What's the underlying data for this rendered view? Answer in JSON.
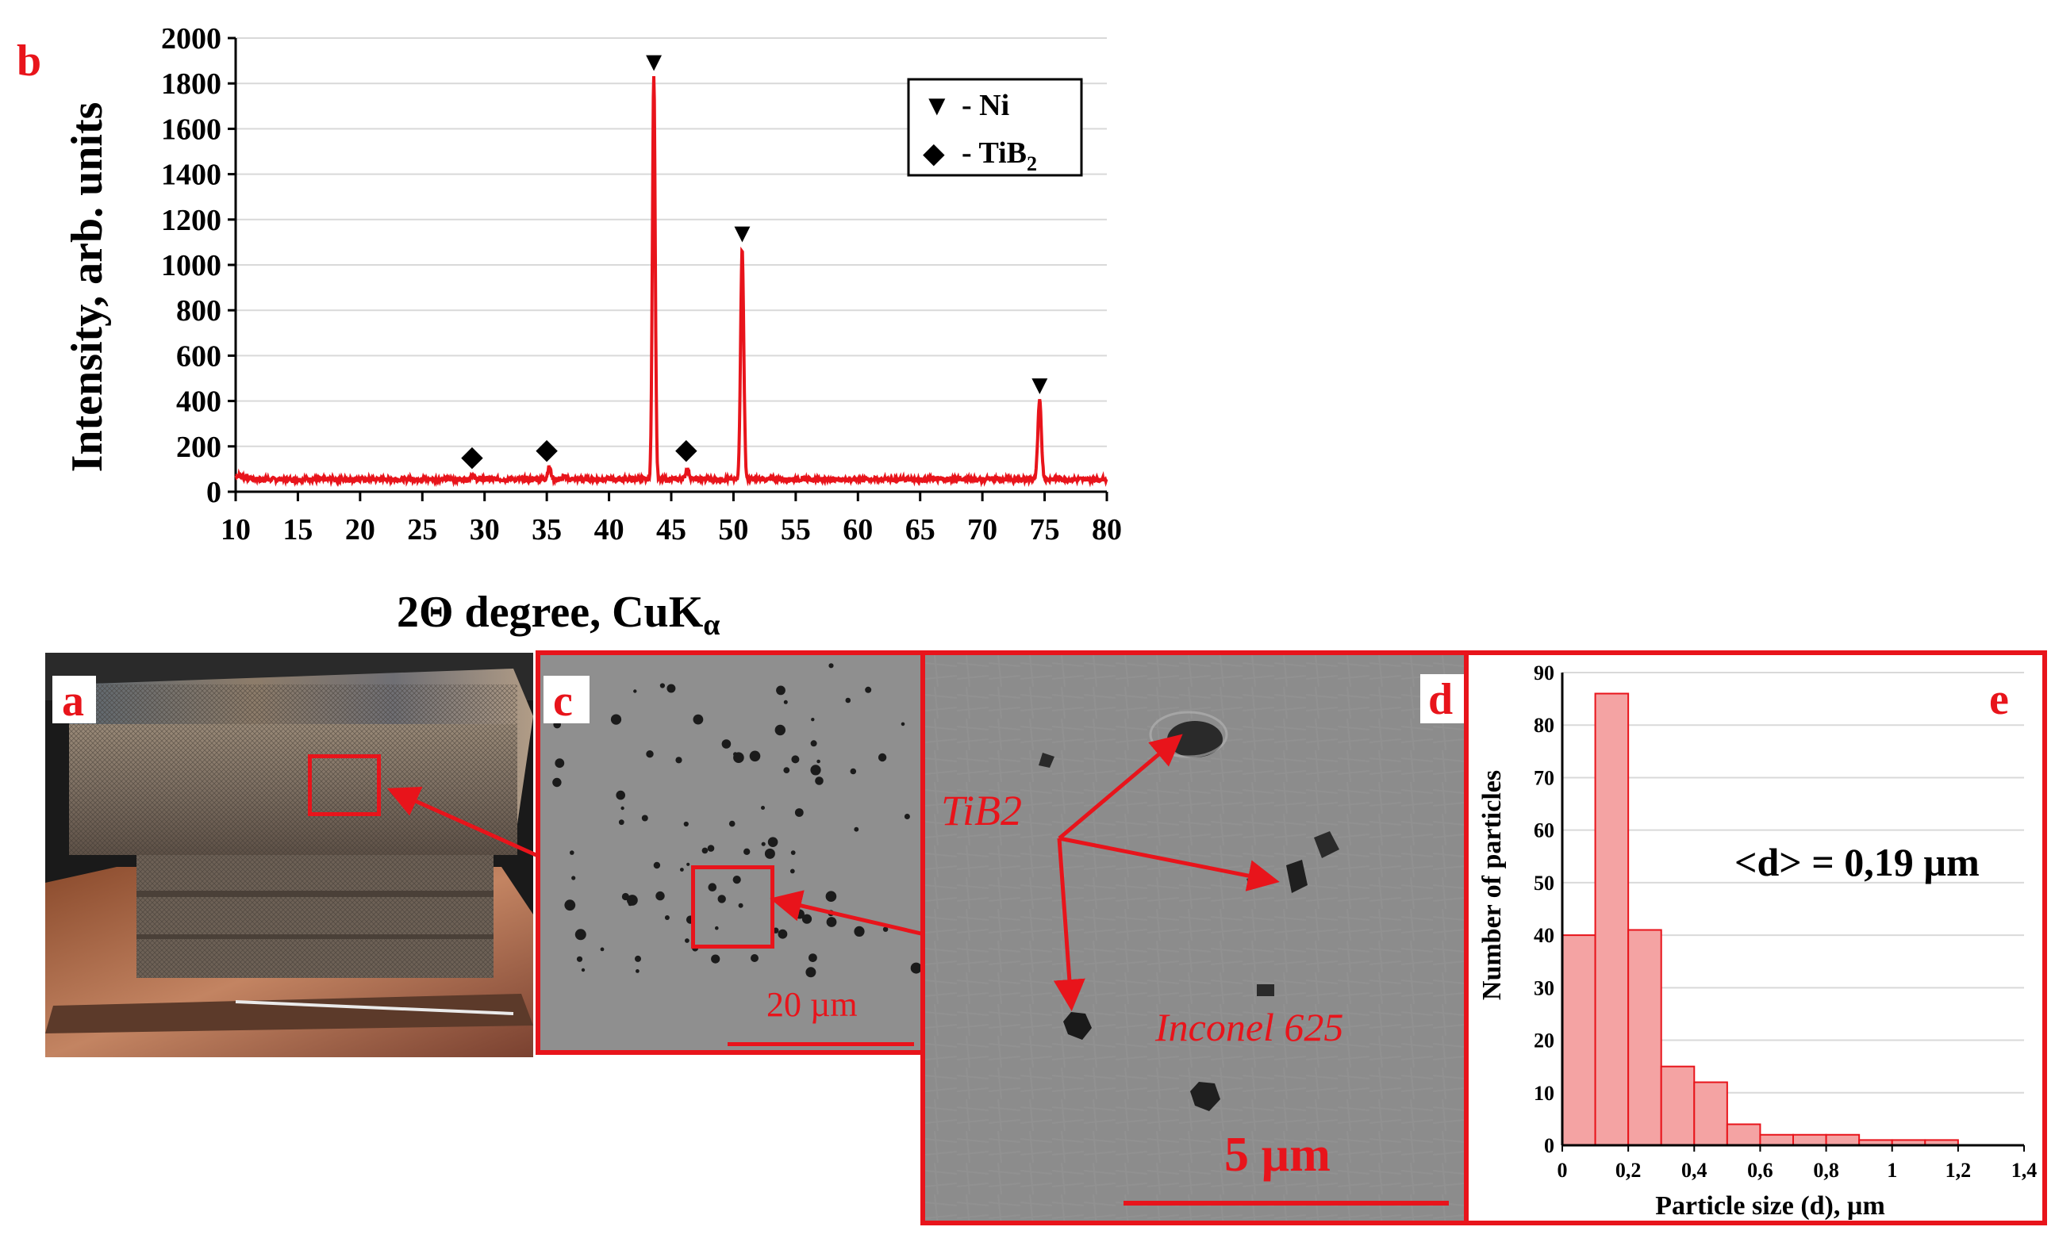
{
  "panel_labels": {
    "a": "a",
    "b": "b",
    "c": "c",
    "d": "d",
    "e": "e"
  },
  "colors": {
    "accent_red": "#e8141b",
    "hist_fill": "#f4a3a3",
    "sem_gray": "#8e8e8e"
  },
  "chart_data": [
    {
      "type": "line",
      "panel": "b",
      "xlabel_prefix": "2Θ degree, CuK",
      "xlabel_sub": "α",
      "ylabel": "Intensity, arb. units",
      "xlim": [
        10,
        80
      ],
      "ylim": [
        0,
        2000
      ],
      "xticks": [
        "10",
        "15",
        "20",
        "25",
        "30",
        "35",
        "40",
        "45",
        "50",
        "55",
        "60",
        "65",
        "70",
        "75",
        "80"
      ],
      "yticks": [
        "0",
        "200",
        "400",
        "600",
        "800",
        "1000",
        "1200",
        "1400",
        "1600",
        "1800",
        "2000"
      ],
      "grid": "horizontal",
      "legend_placement": "top-right",
      "legend": [
        {
          "marker": "▼",
          "label": "- Ni",
          "sub": ""
        },
        {
          "marker": "◆",
          "label": "- TiB",
          "sub": "2"
        }
      ],
      "series": [
        {
          "color": "#e8141b",
          "baseline": 55,
          "peaks": [
            {
              "x": 29.0,
              "y": 80,
              "w": 0.15
            },
            {
              "x": 35.2,
              "y": 110,
              "w": 0.18
            },
            {
              "x": 36.5,
              "y": 70,
              "w": 0.15
            },
            {
              "x": 43.6,
              "y": 1840,
              "w": 0.16
            },
            {
              "x": 46.3,
              "y": 100,
              "w": 0.2
            },
            {
              "x": 50.7,
              "y": 1070,
              "w": 0.18
            },
            {
              "x": 74.6,
              "y": 400,
              "w": 0.2
            }
          ]
        }
      ],
      "markers": [
        {
          "symbol": "▼",
          "phase": "Ni",
          "x": 43.6,
          "y": 1905
        },
        {
          "symbol": "▼",
          "phase": "Ni",
          "x": 50.7,
          "y": 1150
        },
        {
          "symbol": "▼",
          "phase": "Ni",
          "x": 74.6,
          "y": 480
        },
        {
          "symbol": "◆",
          "phase": "TiB2",
          "x": 29.0,
          "y": 165
        },
        {
          "symbol": "◆",
          "phase": "TiB2",
          "x": 35.0,
          "y": 195
        },
        {
          "symbol": "◆",
          "phase": "TiB2",
          "x": 46.2,
          "y": 195
        }
      ]
    },
    {
      "type": "bar",
      "panel": "e",
      "xlabel": "Particle size (d), µm",
      "ylabel": "Number of particles",
      "annotation": "<d> = 0,19 µm",
      "xlim": [
        0,
        1.4
      ],
      "ylim": [
        0,
        90
      ],
      "xticks": [
        "0",
        "0,2",
        "0,4",
        "0,6",
        "0,8",
        "1",
        "1,2",
        "1,4"
      ],
      "yticks": [
        "0",
        "10",
        "20",
        "30",
        "40",
        "50",
        "60",
        "70",
        "80",
        "90"
      ],
      "bins": [
        {
          "x0": 0.0,
          "x1": 0.1,
          "value": 40
        },
        {
          "x0": 0.1,
          "x1": 0.2,
          "value": 86
        },
        {
          "x0": 0.2,
          "x1": 0.3,
          "value": 41
        },
        {
          "x0": 0.3,
          "x1": 0.4,
          "value": 15
        },
        {
          "x0": 0.4,
          "x1": 0.5,
          "value": 12
        },
        {
          "x0": 0.5,
          "x1": 0.6,
          "value": 4
        },
        {
          "x0": 0.6,
          "x1": 0.7,
          "value": 2
        },
        {
          "x0": 0.7,
          "x1": 0.8,
          "value": 2
        },
        {
          "x0": 0.8,
          "x1": 0.9,
          "value": 2
        },
        {
          "x0": 0.9,
          "x1": 1.0,
          "value": 1
        },
        {
          "x0": 1.0,
          "x1": 1.1,
          "value": 1
        },
        {
          "x0": 1.1,
          "x1": 1.2,
          "value": 1
        }
      ]
    }
  ],
  "micrographs": {
    "c": {
      "scalebar": "20 µm"
    },
    "d": {
      "scalebar": "5 µm",
      "label_tib2": "TiB2",
      "label_matrix": "Inconel 625"
    }
  }
}
